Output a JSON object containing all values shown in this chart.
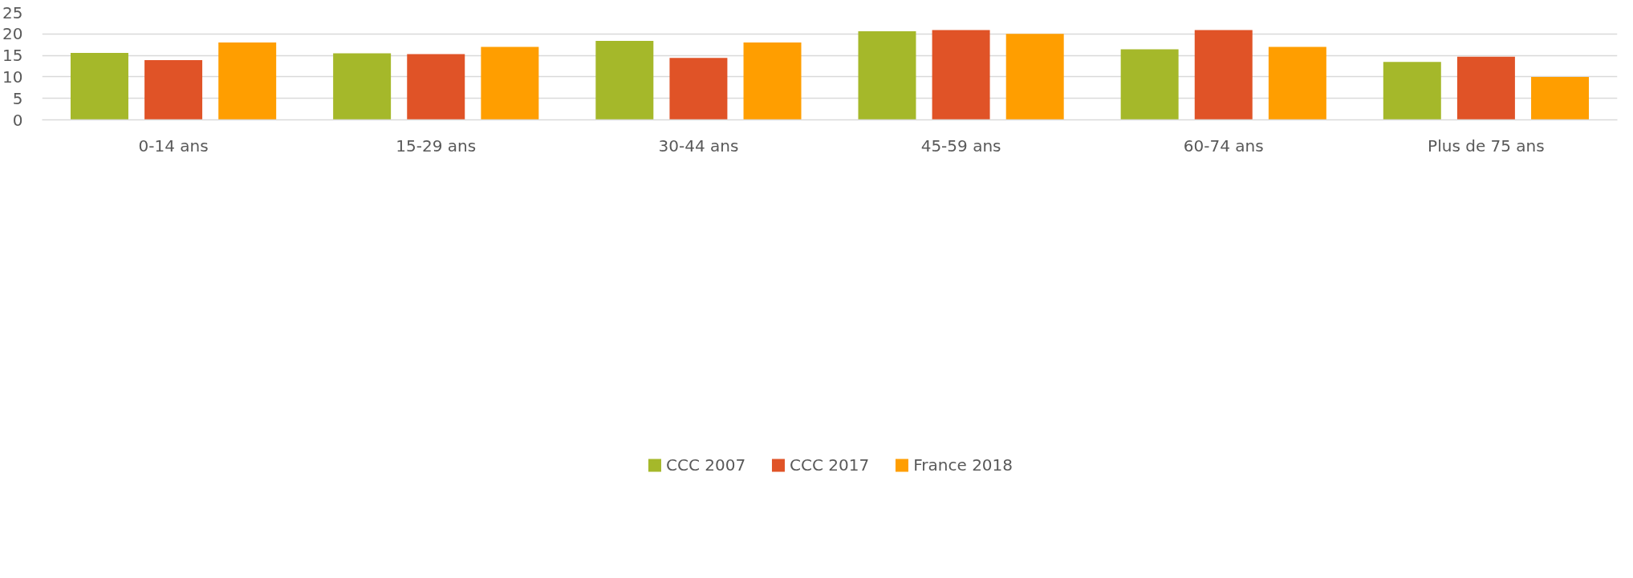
{
  "chart_data": {
    "type": "bar",
    "categories": [
      "0-14 ans",
      "15-29 ans",
      "30-44 ans",
      "45-59 ans",
      "60-74 ans",
      "Plus de 75 ans"
    ],
    "series": [
      {
        "name": "CCC 2007",
        "color": "#a5b82a",
        "values": [
          15.6,
          15.5,
          18.4,
          20.6,
          16.4,
          13.5
        ]
      },
      {
        "name": "CCC 2017",
        "color": "#e05327",
        "values": [
          13.9,
          15.3,
          14.4,
          20.9,
          20.9,
          14.7
        ]
      },
      {
        "name": "France 2018",
        "color": "#ff9e00",
        "values": [
          18.0,
          17.0,
          18.0,
          20.0,
          17.0,
          10.0
        ]
      }
    ],
    "ylim": [
      0,
      25
    ],
    "yticks": [
      0,
      5,
      10,
      15,
      20,
      25
    ],
    "grid": "y",
    "legend": "bottom"
  }
}
